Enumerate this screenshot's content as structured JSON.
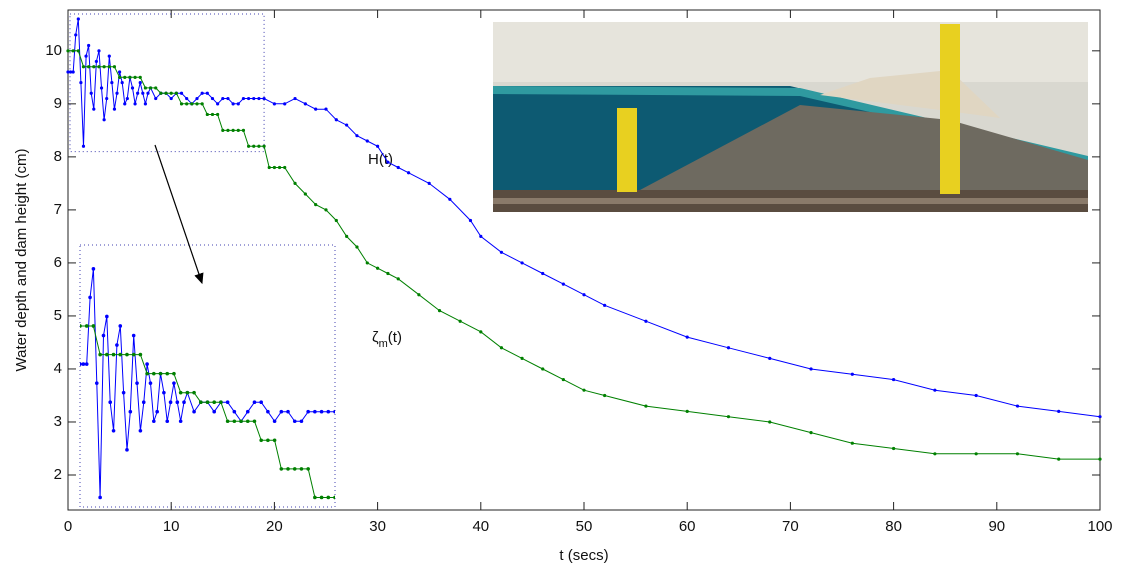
{
  "chart_data": {
    "type": "line",
    "x_label": "t (secs)",
    "y_label": "Water depth and dam height (cm)",
    "xlim": [
      0,
      100
    ],
    "ylim": [
      1.34,
      10.77
    ],
    "xticks": [
      0,
      10,
      20,
      30,
      40,
      50,
      60,
      70,
      80,
      90,
      100
    ],
    "yticks": [
      2,
      3,
      4,
      5,
      6,
      7,
      8,
      9,
      10
    ],
    "annotations": [
      {
        "parts": [
          "H(t)"
        ]
      },
      {
        "parts": [
          "ζ",
          "m",
          "(t)"
        ]
      }
    ],
    "inset": {
      "xlim": [
        0,
        19
      ],
      "ylim": [
        8.1,
        10.85
      ]
    },
    "series": [
      {
        "color": "#0000ff",
        "x": [
          0,
          0.25,
          0.5,
          0.75,
          1,
          1.25,
          1.5,
          1.75,
          2,
          2.25,
          2.5,
          2.75,
          3,
          3.25,
          3.5,
          3.75,
          4,
          4.25,
          4.5,
          4.75,
          5,
          5.25,
          5.5,
          5.75,
          6,
          6.25,
          6.5,
          6.75,
          7,
          7.25,
          7.5,
          7.75,
          8,
          8.5,
          9,
          9.5,
          10,
          10.5,
          11,
          11.5,
          12,
          12.5,
          13,
          13.5,
          14,
          14.5,
          15,
          15.5,
          16,
          16.5,
          17,
          17.5,
          18,
          18.5,
          19,
          20,
          21,
          22,
          23,
          24,
          25,
          26,
          27,
          28,
          29,
          30,
          31,
          32,
          33,
          35,
          37,
          39,
          40,
          42,
          44,
          46,
          48,
          50,
          52,
          56,
          60,
          64,
          68,
          72,
          76,
          80,
          84,
          88,
          92,
          96,
          100
        ],
        "values": [
          9.6,
          9.6,
          9.6,
          10.3,
          10.6,
          9.4,
          8.2,
          9.9,
          10.1,
          9.2,
          8.9,
          9.8,
          10.0,
          9.3,
          8.7,
          9.1,
          9.9,
          9.4,
          8.9,
          9.2,
          9.6,
          9.4,
          9.0,
          9.1,
          9.5,
          9.3,
          9.0,
          9.2,
          9.4,
          9.2,
          9.0,
          9.2,
          9.3,
          9.1,
          9.2,
          9.2,
          9.1,
          9.2,
          9.2,
          9.1,
          9.0,
          9.1,
          9.2,
          9.2,
          9.1,
          9.0,
          9.1,
          9.1,
          9.0,
          9.0,
          9.1,
          9.1,
          9.1,
          9.1,
          9.1,
          9.0,
          9.0,
          9.1,
          9.0,
          8.9,
          8.9,
          8.7,
          8.6,
          8.4,
          8.3,
          8.2,
          7.9,
          7.8,
          7.7,
          7.5,
          7.2,
          6.8,
          6.5,
          6.2,
          6.0,
          5.8,
          5.6,
          5.4,
          5.2,
          4.9,
          4.6,
          4.4,
          4.2,
          4.0,
          3.9,
          3.8,
          3.6,
          3.5,
          3.3,
          3.2,
          3.1
        ]
      },
      {
        "color": "#008000",
        "x": [
          0,
          0.5,
          1,
          1.5,
          2,
          2.5,
          3,
          3.5,
          4,
          4.5,
          5,
          5.5,
          6,
          6.5,
          7,
          7.5,
          8,
          8.5,
          9,
          9.5,
          10,
          10.5,
          11,
          11.5,
          12,
          12.5,
          13,
          13.5,
          14,
          14.5,
          15,
          15.5,
          16,
          16.5,
          17,
          17.5,
          18,
          18.5,
          19,
          19.5,
          20,
          20.5,
          21,
          22,
          23,
          24,
          25,
          26,
          27,
          28,
          29,
          30,
          31,
          32,
          34,
          36,
          38,
          40,
          42,
          44,
          46,
          48,
          50,
          52,
          56,
          60,
          64,
          68,
          72,
          76,
          80,
          84,
          88,
          92,
          96,
          100
        ],
        "values": [
          10.0,
          10.0,
          10.0,
          9.7,
          9.7,
          9.7,
          9.7,
          9.7,
          9.7,
          9.7,
          9.5,
          9.5,
          9.5,
          9.5,
          9.5,
          9.3,
          9.3,
          9.3,
          9.2,
          9.2,
          9.2,
          9.2,
          9.0,
          9.0,
          9.0,
          9.0,
          9.0,
          8.8,
          8.8,
          8.8,
          8.5,
          8.5,
          8.5,
          8.5,
          8.5,
          8.2,
          8.2,
          8.2,
          8.2,
          7.8,
          7.8,
          7.8,
          7.8,
          7.5,
          7.3,
          7.1,
          7.0,
          6.8,
          6.5,
          6.3,
          6.0,
          5.9,
          5.8,
          5.7,
          5.4,
          5.1,
          4.9,
          4.7,
          4.4,
          4.2,
          4.0,
          3.8,
          3.6,
          3.5,
          3.3,
          3.2,
          3.1,
          3.0,
          2.8,
          2.6,
          2.5,
          2.4,
          2.4,
          2.4,
          2.3,
          2.3
        ]
      }
    ]
  }
}
